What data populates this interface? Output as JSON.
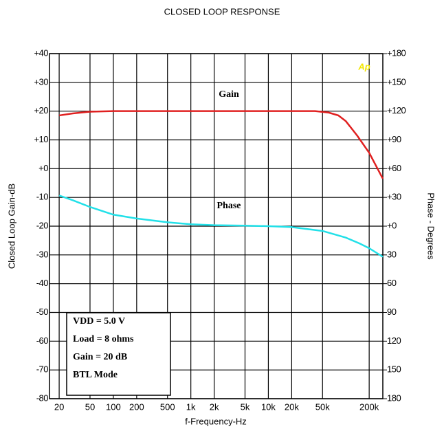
{
  "chart_data": {
    "type": "line",
    "title": "CLOSED LOOP RESPONSE",
    "xlabel": "f-Frequency-Hz",
    "ylabel": "Closed Loop Gain-dB",
    "y2label": "Phase - Degrees",
    "xscale": "log",
    "xlim": [
      15,
      300000
    ],
    "xticks": [
      20,
      50,
      100,
      200,
      500,
      {
        "value": 1000,
        "label": "1k"
      },
      {
        "value": 2000,
        "label": "2k"
      },
      {
        "value": 5000,
        "label": "5k"
      },
      {
        "value": 10000,
        "label": "10k"
      },
      {
        "value": 20000,
        "label": "20k"
      },
      {
        "value": 50000,
        "label": "50k"
      },
      {
        "value": 200000,
        "label": "200k"
      }
    ],
    "ylim": [
      -80,
      40
    ],
    "yticks": [
      {
        "value": 40,
        "label": "+40"
      },
      {
        "value": 30,
        "label": "+30"
      },
      {
        "value": 20,
        "label": "+20"
      },
      {
        "value": 10,
        "label": "+10"
      },
      {
        "value": 0,
        "label": "+0"
      },
      -10,
      -20,
      -30,
      -40,
      -50,
      -60,
      -70,
      -80
    ],
    "y2lim": [
      -180,
      180
    ],
    "y2ticks": [
      {
        "value": 180,
        "label": "+180"
      },
      {
        "value": 150,
        "label": "+150"
      },
      {
        "value": 120,
        "label": "+120"
      },
      {
        "value": 90,
        "label": "+90"
      },
      {
        "value": 60,
        "label": "+60"
      },
      {
        "value": 30,
        "label": "+30"
      },
      {
        "value": 0,
        "label": "+0"
      },
      {
        "value": -30,
        "label": "30"
      },
      {
        "value": -60,
        "label": "60"
      },
      {
        "value": -90,
        "label": "90"
      },
      {
        "value": -120,
        "label": "120"
      },
      {
        "value": -150,
        "label": "150"
      },
      {
        "value": -180,
        "label": "180"
      }
    ],
    "grid": true,
    "series": [
      {
        "name": "Gain",
        "color": "#e02020",
        "x": [
          20,
          30,
          50,
          100,
          1000,
          10000,
          40000,
          60000,
          80000,
          100000,
          140000,
          200000,
          300000
        ],
        "values": [
          18.5,
          19.2,
          19.8,
          20,
          20,
          20,
          20,
          19.5,
          18.5,
          16.5,
          11.5,
          5.5,
          -3.5
        ]
      },
      {
        "name": "Phase",
        "color": "#22e0e8",
        "axis": "y2",
        "x": [
          20,
          30,
          50,
          100,
          200,
          500,
          1000,
          2000,
          5000,
          10000,
          20000,
          50000,
          100000,
          150000,
          200000,
          300000
        ],
        "values": [
          32,
          27,
          20,
          12,
          8,
          4,
          2,
          1,
          0.5,
          0,
          -1,
          -5,
          -12,
          -18,
          -23,
          -32
        ]
      }
    ],
    "annotations": [
      "VDD = 5.0 V",
      "Load = 8 ohms",
      "Gain = 20 dB",
      "BTL  Mode"
    ],
    "logo": "Ap"
  }
}
